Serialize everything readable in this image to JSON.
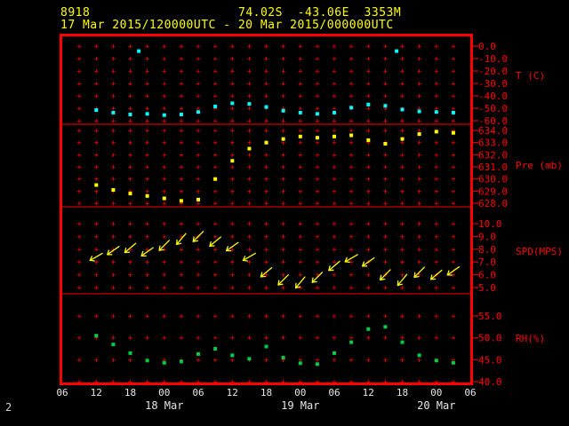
{
  "header": {
    "station_id": "8918",
    "location": "74.02S  -43.06E  3353M",
    "time_range": "17 Mar 2015/120000UTC - 20 Mar 2015/000000UTC"
  },
  "footer": {
    "page_number": "2"
  },
  "colors": {
    "background": "#000000",
    "frame": "#ff0000",
    "axis": "#ff0000",
    "header_text": "#ffff00",
    "time_text": "#e6e6e6",
    "page_number": "#cfcfcf"
  },
  "x_axis": {
    "note": "x_hours are hours after the first axis tick (06 UTC 17 Mar 2015); ticks every 3 h, labels every 6 h",
    "hour_labels": [
      {
        "hour": 0,
        "label": "06"
      },
      {
        "hour": 6,
        "label": "12"
      },
      {
        "hour": 12,
        "label": "18"
      },
      {
        "hour": 18,
        "label": "00"
      },
      {
        "hour": 24,
        "label": "06"
      },
      {
        "hour": 30,
        "label": "12"
      },
      {
        "hour": 36,
        "label": "18"
      },
      {
        "hour": 42,
        "label": "00"
      },
      {
        "hour": 48,
        "label": "06"
      },
      {
        "hour": 54,
        "label": "12"
      },
      {
        "hour": 60,
        "label": "18"
      },
      {
        "hour": 66,
        "label": "00"
      },
      {
        "hour": 72,
        "label": "06"
      }
    ],
    "date_labels": [
      {
        "hour": 18,
        "label": "18 Mar"
      },
      {
        "hour": 42,
        "label": "19 Mar"
      },
      {
        "hour": 66,
        "label": "20 Mar"
      }
    ]
  },
  "chart_data": [
    {
      "name": "temperature",
      "type": "scatter",
      "ylabel": "T (C)",
      "marker": "square",
      "color": "#00ffff",
      "yticks": [
        0,
        -10,
        -20,
        -30,
        -40,
        -50,
        -60
      ],
      "ylim": [
        0,
        -60
      ],
      "x_hours": [
        6,
        9,
        12,
        15,
        18,
        21,
        24,
        27,
        30,
        33,
        36,
        39,
        42,
        45,
        48,
        51,
        54,
        57,
        60,
        63,
        66,
        69
      ],
      "values": [
        -51.5,
        -53.5,
        -55,
        -54.5,
        -55.5,
        -55,
        -53,
        -48.5,
        -46,
        -46.5,
        -49,
        -52,
        -53.5,
        -54.5,
        -53.5,
        -49.5,
        -47,
        -48,
        -51,
        -52.5,
        -53,
        -53.5
      ],
      "outliers": [
        [
          13.5,
          -4.0
        ],
        [
          59,
          -4.0
        ]
      ]
    },
    {
      "name": "pressure",
      "type": "scatter",
      "ylabel": "Pre (mb)",
      "marker": "square",
      "color": "#ffff00",
      "yticks": [
        634,
        633,
        632,
        631,
        630,
        629,
        628
      ],
      "ylim": [
        634,
        628
      ],
      "x_hours": [
        6,
        9,
        12,
        15,
        18,
        21,
        24,
        27,
        30,
        33,
        36,
        39,
        42,
        45,
        48,
        51,
        54,
        57,
        60,
        63,
        66,
        69
      ],
      "values": [
        629.5,
        629.1,
        628.8,
        628.6,
        628.4,
        628.2,
        628.3,
        630.0,
        631.5,
        632.5,
        633.0,
        633.3,
        633.5,
        633.4,
        633.5,
        633.6,
        633.2,
        632.9,
        633.3,
        633.7,
        633.9,
        633.8
      ]
    },
    {
      "name": "wind_speed",
      "type": "scatter",
      "ylabel": "SPD(MPS)",
      "marker": "arrow",
      "color": "#ffff00",
      "yticks": [
        10,
        9,
        8,
        7,
        6,
        5
      ],
      "ylim": [
        10,
        5
      ],
      "x_hours": [
        6,
        9,
        12,
        15,
        18,
        21,
        24,
        27,
        30,
        33,
        36,
        39,
        42,
        45,
        48,
        51,
        54,
        57,
        60,
        63,
        66,
        69
      ],
      "values": [
        7.4,
        7.9,
        8.1,
        7.8,
        8.3,
        8.8,
        9.0,
        8.6,
        8.2,
        7.4,
        6.2,
        5.6,
        5.4,
        5.8,
        6.7,
        7.3,
        7.0,
        6.0,
        5.6,
        6.2,
        6.0,
        6.3
      ],
      "directions_deg": [
        150,
        145,
        140,
        145,
        135,
        130,
        135,
        140,
        145,
        150,
        140,
        135,
        130,
        135,
        140,
        150,
        145,
        135,
        130,
        135,
        140,
        145
      ]
    },
    {
      "name": "relative_humidity",
      "type": "scatter",
      "ylabel": "RH(%)",
      "marker": "square",
      "color": "#00cc44",
      "yticks": [
        55,
        50,
        45,
        40
      ],
      "ylim": [
        55,
        40
      ],
      "x_hours": [
        6,
        9,
        12,
        15,
        18,
        21,
        24,
        27,
        30,
        33,
        36,
        39,
        42,
        45,
        48,
        51,
        54,
        57,
        60,
        63,
        66,
        69
      ],
      "values": [
        50.5,
        48.5,
        46.5,
        44.8,
        44.3,
        44.6,
        46.3,
        47.5,
        46.0,
        45.2,
        48.0,
        45.5,
        44.2,
        44.0,
        46.5,
        49.0,
        52.0,
        52.5,
        49.0,
        46.0,
        44.8,
        44.3
      ]
    }
  ]
}
